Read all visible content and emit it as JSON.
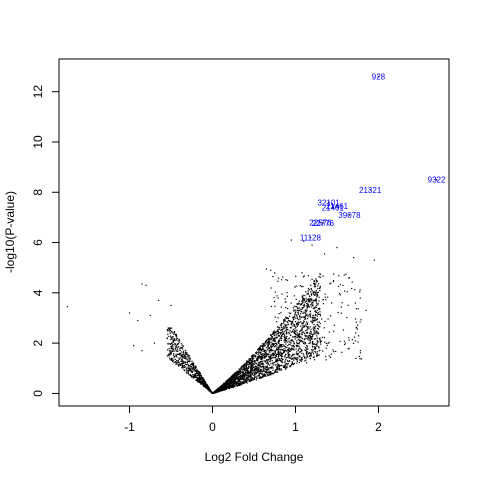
{
  "chart_data": {
    "type": "scatter",
    "title": "",
    "xlabel": "Log2 Fold Change",
    "ylabel": "-log10(P-value)",
    "xlim": [
      -1.85,
      2.85
    ],
    "ylim": [
      -0.5,
      13.3
    ],
    "x_ticks": [
      -1,
      0,
      1,
      2
    ],
    "y_ticks": [
      0,
      2,
      4,
      6,
      8,
      10,
      12
    ],
    "grid": false,
    "legend": "none",
    "point_color": "#000000",
    "annotation_color": "#0000ff",
    "annotations": [
      {
        "label": "928",
        "x": 2.0,
        "y": 12.6
      },
      {
        "label": "9322",
        "x": 2.7,
        "y": 8.5
      },
      {
        "label": "21321",
        "x": 1.9,
        "y": 8.1
      },
      {
        "label": "32101",
        "x": 1.4,
        "y": 7.6
      },
      {
        "label": "21401",
        "x": 1.45,
        "y": 7.4
      },
      {
        "label": "21461",
        "x": 1.5,
        "y": 7.45
      },
      {
        "label": "39078",
        "x": 1.65,
        "y": 7.1
      },
      {
        "label": "22576",
        "x": 1.3,
        "y": 6.8
      },
      {
        "label": "22776",
        "x": 1.33,
        "y": 6.78
      },
      {
        "label": "11128",
        "x": 1.18,
        "y": 6.2
      }
    ],
    "outliers": [
      {
        "x": -1.75,
        "y": 3.45
      },
      {
        "x": -0.85,
        "y": 4.35
      },
      {
        "x": -0.8,
        "y": 4.3
      },
      {
        "x": -1.0,
        "y": 3.2
      },
      {
        "x": -0.75,
        "y": 3.1
      },
      {
        "x": -0.5,
        "y": 3.5
      },
      {
        "x": -0.9,
        "y": 2.9
      },
      {
        "x": -0.95,
        "y": 1.9
      },
      {
        "x": -0.85,
        "y": 1.7
      },
      {
        "x": -0.7,
        "y": 2.0
      },
      {
        "x": -0.65,
        "y": 3.7
      },
      {
        "x": 1.95,
        "y": 5.3
      },
      {
        "x": 1.7,
        "y": 5.4
      },
      {
        "x": 1.5,
        "y": 5.8
      },
      {
        "x": 1.1,
        "y": 6.05
      },
      {
        "x": 0.95,
        "y": 6.1
      },
      {
        "x": 1.35,
        "y": 5.55
      },
      {
        "x": 1.65,
        "y": 4.6
      },
      {
        "x": 1.6,
        "y": 2.0
      },
      {
        "x": 1.85,
        "y": 3.3
      },
      {
        "x": 0.65,
        "y": 4.95
      },
      {
        "x": 0.7,
        "y": 4.9
      },
      {
        "x": 1.2,
        "y": 5.9
      }
    ]
  }
}
